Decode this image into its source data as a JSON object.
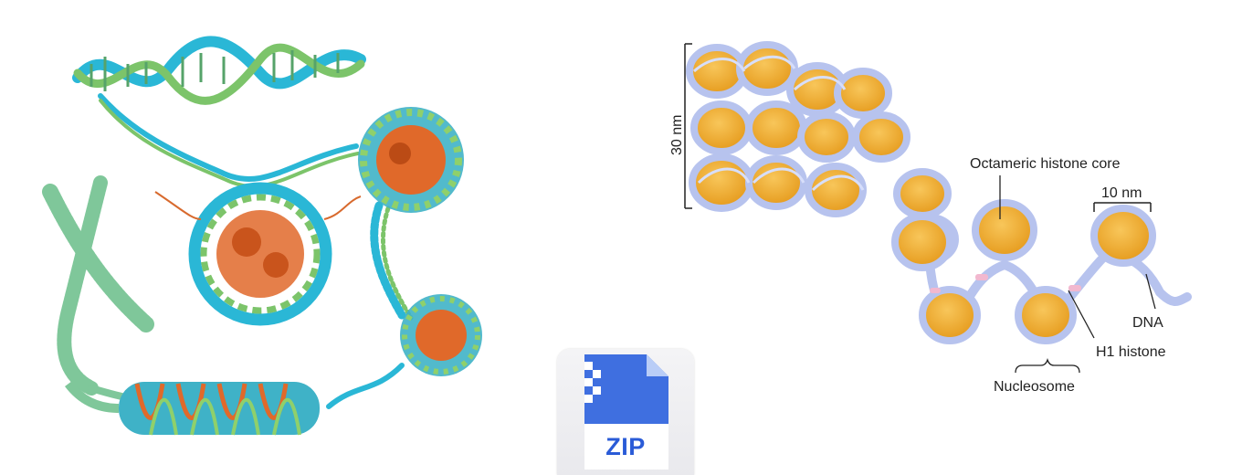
{
  "labels": {
    "scale_30nm": "30 nm",
    "octameric_core": "Octameric histone core",
    "scale_10nm": "10 nm",
    "dna": "DNA",
    "h1_histone": "H1 histone",
    "nucleosome": "Nucleosome"
  },
  "file_icon": {
    "type_label": "ZIP",
    "accent": "#2a5bd7"
  },
  "colors": {
    "dna_cyan": "#2ab7d6",
    "dna_green": "#7cc46a",
    "histone_orange": "#e0692a",
    "chromatin_green": "#7fc79a",
    "core_yellow": "#f4b533",
    "wrap_lavender": "#b7c3ee",
    "linker_pink": "#f2b8cf"
  }
}
